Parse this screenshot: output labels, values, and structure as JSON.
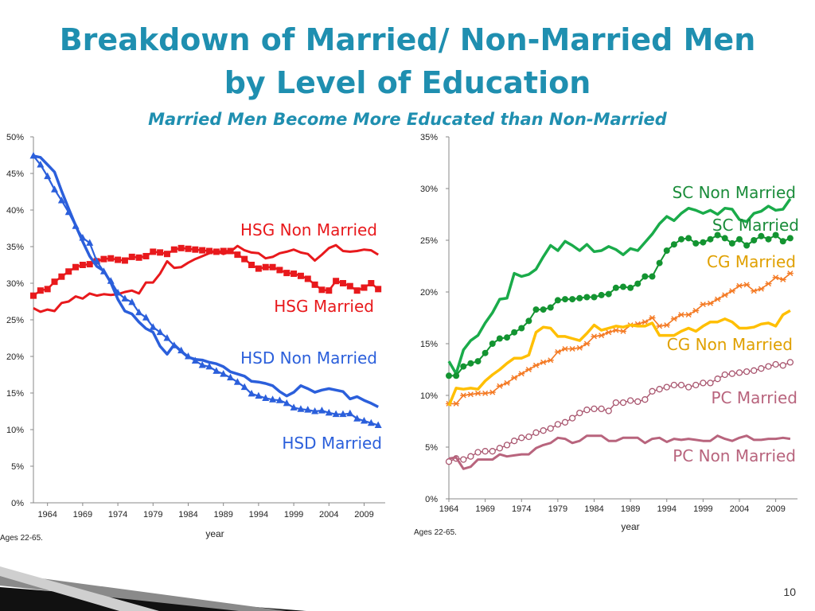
{
  "slide": {
    "title_line1": "Breakdown of Married/ Non-Married Men",
    "title_line2": "by Level of Education",
    "subtitle": "Married Men Become More Educated than Non-Married",
    "slide_number": "10",
    "colors": {
      "title": "#1f8fb0"
    }
  },
  "chart_data": [
    {
      "type": "line",
      "xlabel": "year",
      "ylabel": "",
      "note": "Ages 22-65.",
      "xlim": [
        1962,
        2012
      ],
      "ylim": [
        0,
        0.5
      ],
      "yticks": [
        "0%",
        "5%",
        "10%",
        "15%",
        "20%",
        "25%",
        "30%",
        "35%",
        "40%",
        "45%",
        "50%"
      ],
      "xticks": [
        "1964",
        "1969",
        "1974",
        "1979",
        "1984",
        "1989",
        "1994",
        "1999",
        "2004",
        "2009"
      ],
      "grid": false,
      "legend": "inline labels",
      "x": [
        1962,
        1963,
        1964,
        1965,
        1966,
        1967,
        1968,
        1969,
        1970,
        1971,
        1972,
        1973,
        1974,
        1975,
        1976,
        1977,
        1978,
        1979,
        1980,
        1981,
        1982,
        1983,
        1984,
        1985,
        1986,
        1987,
        1988,
        1989,
        1990,
        1991,
        1992,
        1993,
        1994,
        1995,
        1996,
        1997,
        1998,
        1999,
        2000,
        2001,
        2002,
        2003,
        2004,
        2005,
        2006,
        2007,
        2008,
        2009,
        2010,
        2011
      ],
      "series": [
        {
          "name": "HSG Non Married",
          "color": "#e8191c",
          "marker": "square",
          "values": [
            0.283,
            0.29,
            0.292,
            0.302,
            0.309,
            0.316,
            0.322,
            0.325,
            0.326,
            0.33,
            0.333,
            0.334,
            0.332,
            0.331,
            0.336,
            0.335,
            0.337,
            0.343,
            0.342,
            0.34,
            0.346,
            0.348,
            0.347,
            0.346,
            0.345,
            0.344,
            0.343,
            0.344,
            0.344,
            0.339,
            0.333,
            0.325,
            0.32,
            0.322,
            0.322,
            0.318,
            0.314,
            0.313,
            0.31,
            0.306,
            0.298,
            0.291,
            0.29,
            0.303,
            0.3,
            0.296,
            0.29,
            0.294,
            0.3,
            0.292
          ]
        },
        {
          "name": "HSG Married",
          "color": "#e8191c",
          "marker": "none",
          "values": [
            0.266,
            0.261,
            0.264,
            0.262,
            0.273,
            0.275,
            0.282,
            0.279,
            0.286,
            0.283,
            0.285,
            0.284,
            0.285,
            0.288,
            0.29,
            0.286,
            0.301,
            0.301,
            0.313,
            0.33,
            0.321,
            0.322,
            0.328,
            0.333,
            0.337,
            0.341,
            0.344,
            0.34,
            0.343,
            0.351,
            0.345,
            0.342,
            0.341,
            0.334,
            0.336,
            0.341,
            0.343,
            0.346,
            0.342,
            0.34,
            0.331,
            0.339,
            0.348,
            0.352,
            0.344,
            0.343,
            0.344,
            0.346,
            0.345,
            0.339
          ]
        },
        {
          "name": "HSD Non Married",
          "color": "#2b5fdb",
          "marker": "none",
          "values": [
            0.474,
            0.472,
            0.462,
            0.452,
            0.426,
            0.402,
            0.379,
            0.357,
            0.337,
            0.323,
            0.317,
            0.301,
            0.278,
            0.262,
            0.258,
            0.247,
            0.238,
            0.233,
            0.214,
            0.203,
            0.216,
            0.207,
            0.199,
            0.196,
            0.195,
            0.192,
            0.19,
            0.186,
            0.179,
            0.176,
            0.173,
            0.166,
            0.165,
            0.163,
            0.16,
            0.152,
            0.146,
            0.151,
            0.16,
            0.156,
            0.151,
            0.154,
            0.156,
            0.154,
            0.152,
            0.142,
            0.145,
            0.14,
            0.136,
            0.131
          ]
        },
        {
          "name": "HSD Married",
          "color": "#2b5fdb",
          "marker": "triangle",
          "values": [
            0.474,
            0.462,
            0.446,
            0.428,
            0.413,
            0.397,
            0.378,
            0.362,
            0.355,
            0.33,
            0.316,
            0.303,
            0.287,
            0.279,
            0.274,
            0.26,
            0.253,
            0.24,
            0.233,
            0.225,
            0.215,
            0.208,
            0.2,
            0.194,
            0.188,
            0.186,
            0.18,
            0.176,
            0.171,
            0.165,
            0.158,
            0.149,
            0.146,
            0.143,
            0.141,
            0.14,
            0.136,
            0.13,
            0.128,
            0.127,
            0.125,
            0.126,
            0.123,
            0.121,
            0.121,
            0.122,
            0.115,
            0.112,
            0.109,
            0.106
          ]
        }
      ],
      "annotations": [
        "HSG Non Married",
        "HSG Married",
        "HSD Non Married",
        "HSD Married"
      ]
    },
    {
      "type": "line",
      "xlabel": "year",
      "ylabel": "",
      "note": "Ages 22-65.",
      "xlim": [
        1964,
        2012
      ],
      "ylim": [
        0,
        0.35
      ],
      "yticks": [
        "0%",
        "5%",
        "10%",
        "15%",
        "20%",
        "25%",
        "30%",
        "35%"
      ],
      "xticks": [
        "1964",
        "1969",
        "1974",
        "1979",
        "1984",
        "1989",
        "1994",
        "1999",
        "2004",
        "2009"
      ],
      "grid": false,
      "legend": "inline labels",
      "x": [
        1964,
        1965,
        1966,
        1967,
        1968,
        1969,
        1970,
        1971,
        1972,
        1973,
        1974,
        1975,
        1976,
        1977,
        1978,
        1979,
        1980,
        1981,
        1982,
        1983,
        1984,
        1985,
        1986,
        1987,
        1988,
        1989,
        1990,
        1991,
        1992,
        1993,
        1994,
        1995,
        1996,
        1997,
        1998,
        1999,
        2000,
        2001,
        2002,
        2003,
        2004,
        2005,
        2006,
        2007,
        2008,
        2009,
        2010,
        2011
      ],
      "series": [
        {
          "name": "SC Non Married",
          "color": "#1aab4a",
          "marker": "none",
          "values": [
            0.133,
            0.121,
            0.144,
            0.153,
            0.158,
            0.17,
            0.18,
            0.193,
            0.194,
            0.218,
            0.215,
            0.217,
            0.222,
            0.234,
            0.245,
            0.24,
            0.249,
            0.245,
            0.24,
            0.246,
            0.239,
            0.24,
            0.244,
            0.241,
            0.236,
            0.242,
            0.24,
            0.248,
            0.256,
            0.266,
            0.273,
            0.269,
            0.276,
            0.281,
            0.279,
            0.276,
            0.279,
            0.275,
            0.281,
            0.28,
            0.27,
            0.268,
            0.276,
            0.278,
            0.283,
            0.279,
            0.28,
            0.29
          ]
        },
        {
          "name": "SC Married",
          "color": "#139431",
          "marker": "circle",
          "values": [
            0.119,
            0.119,
            0.128,
            0.131,
            0.133,
            0.141,
            0.15,
            0.155,
            0.156,
            0.161,
            0.165,
            0.172,
            0.183,
            0.183,
            0.185,
            0.192,
            0.193,
            0.193,
            0.194,
            0.195,
            0.195,
            0.197,
            0.198,
            0.204,
            0.205,
            0.204,
            0.208,
            0.215,
            0.215,
            0.228,
            0.24,
            0.246,
            0.251,
            0.252,
            0.247,
            0.248,
            0.251,
            0.255,
            0.252,
            0.247,
            0.251,
            0.245,
            0.25,
            0.254,
            0.251,
            0.255,
            0.249,
            0.252
          ]
        },
        {
          "name": "CG Married",
          "color": "#f47a24",
          "marker": "star",
          "values": [
            0.092,
            0.092,
            0.1,
            0.101,
            0.102,
            0.102,
            0.103,
            0.109,
            0.112,
            0.117,
            0.121,
            0.125,
            0.129,
            0.132,
            0.134,
            0.142,
            0.145,
            0.145,
            0.146,
            0.15,
            0.157,
            0.158,
            0.161,
            0.163,
            0.162,
            0.168,
            0.169,
            0.171,
            0.175,
            0.167,
            0.168,
            0.174,
            0.178,
            0.178,
            0.182,
            0.188,
            0.189,
            0.193,
            0.197,
            0.201,
            0.206,
            0.207,
            0.201,
            0.203,
            0.208,
            0.214,
            0.212,
            0.218
          ]
        },
        {
          "name": "CG Non Married",
          "color": "#ffbf00",
          "marker": "none",
          "values": [
            0.09,
            0.107,
            0.106,
            0.107,
            0.106,
            0.114,
            0.12,
            0.125,
            0.131,
            0.136,
            0.136,
            0.139,
            0.161,
            0.166,
            0.165,
            0.157,
            0.157,
            0.155,
            0.153,
            0.16,
            0.168,
            0.163,
            0.165,
            0.167,
            0.166,
            0.168,
            0.167,
            0.167,
            0.17,
            0.158,
            0.158,
            0.158,
            0.162,
            0.165,
            0.162,
            0.167,
            0.171,
            0.171,
            0.174,
            0.171,
            0.165,
            0.165,
            0.166,
            0.169,
            0.17,
            0.167,
            0.178,
            0.182
          ]
        },
        {
          "name": "PC Married",
          "color": "#a9566f",
          "marker": "open-circle",
          "values": [
            0.036,
            0.039,
            0.038,
            0.041,
            0.045,
            0.046,
            0.046,
            0.049,
            0.052,
            0.056,
            0.059,
            0.06,
            0.064,
            0.066,
            0.068,
            0.072,
            0.074,
            0.078,
            0.083,
            0.086,
            0.087,
            0.087,
            0.085,
            0.093,
            0.093,
            0.095,
            0.094,
            0.096,
            0.104,
            0.106,
            0.108,
            0.11,
            0.11,
            0.108,
            0.11,
            0.112,
            0.112,
            0.116,
            0.12,
            0.121,
            0.122,
            0.123,
            0.124,
            0.126,
            0.128,
            0.13,
            0.129,
            0.132
          ]
        },
        {
          "name": "PC Non Married",
          "color": "#b8647d",
          "marker": "none",
          "values": [
            0.039,
            0.04,
            0.029,
            0.031,
            0.038,
            0.038,
            0.038,
            0.043,
            0.041,
            0.042,
            0.043,
            0.043,
            0.049,
            0.052,
            0.054,
            0.059,
            0.058,
            0.054,
            0.056,
            0.061,
            0.061,
            0.061,
            0.056,
            0.056,
            0.059,
            0.059,
            0.059,
            0.054,
            0.058,
            0.059,
            0.055,
            0.058,
            0.057,
            0.058,
            0.057,
            0.056,
            0.056,
            0.061,
            0.058,
            0.056,
            0.059,
            0.061,
            0.057,
            0.057,
            0.058,
            0.058,
            0.059,
            0.058
          ]
        }
      ],
      "annotations": [
        "SC Non Married",
        "SC Married",
        "CG Married",
        "CG Non Married",
        "PC Married",
        "PC Non Married"
      ]
    }
  ]
}
